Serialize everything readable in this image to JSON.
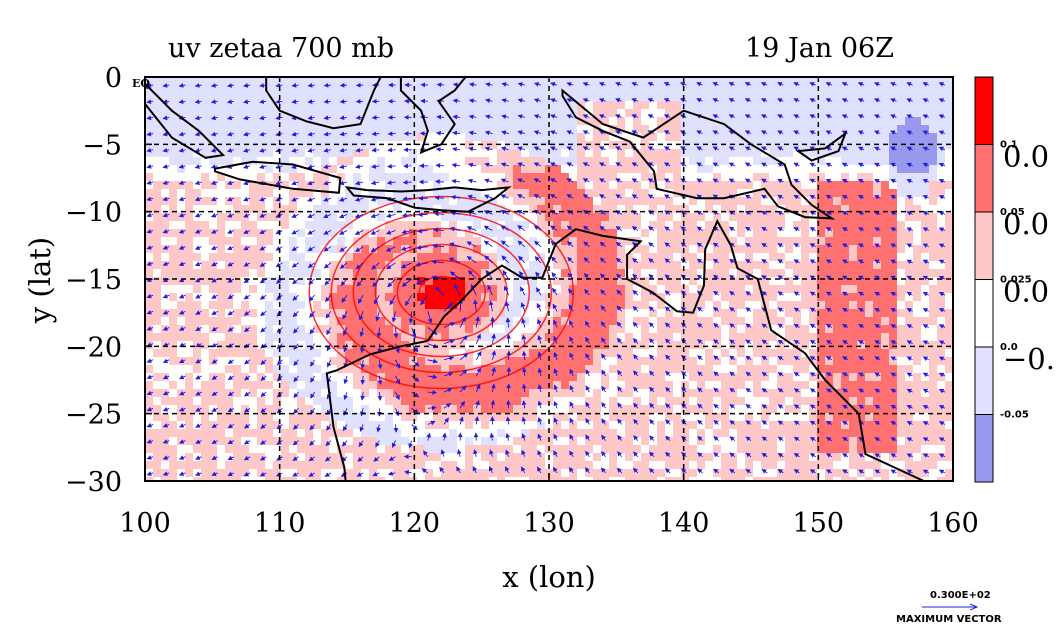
{
  "chart_data": {
    "type": "heatmap",
    "title": "uv zetaa 700 mb",
    "date_label": "19 Jan 06Z",
    "xlabel": "x (lon)",
    "ylabel": "y (lat)",
    "xlim": [
      100,
      160
    ],
    "ylim": [
      -30,
      0
    ],
    "xticks": [
      100,
      110,
      120,
      130,
      140,
      150,
      160
    ],
    "yticks": [
      0,
      -5,
      -10,
      -15,
      -20,
      -25,
      -30
    ],
    "ytick_labels": [
      "0 EQ",
      "−5",
      "−10",
      "−15",
      "−20",
      "−25",
      "−30"
    ],
    "grid": true,
    "colorbar": {
      "boundaries": [
        "0.1",
        "0.05",
        "0.025",
        "0.0",
        "-0.05"
      ],
      "side_labels": [
        "0.0",
        "0.0",
        "0.0",
        "−0."
      ],
      "colors": [
        "#ff0000",
        "#ff7070",
        "#ffc8c8",
        "#ffffff",
        "#e0e0ff",
        "#9999ee"
      ]
    },
    "vortex_center": {
      "lon": 122,
      "lat": -16
    },
    "vector_reference": {
      "value_label": "0.300E+02",
      "caption": "MAXIMUM VECTOR"
    },
    "vector_color": "#0000ff",
    "contour_color": "#ff0000",
    "coast_color": "#000000"
  }
}
